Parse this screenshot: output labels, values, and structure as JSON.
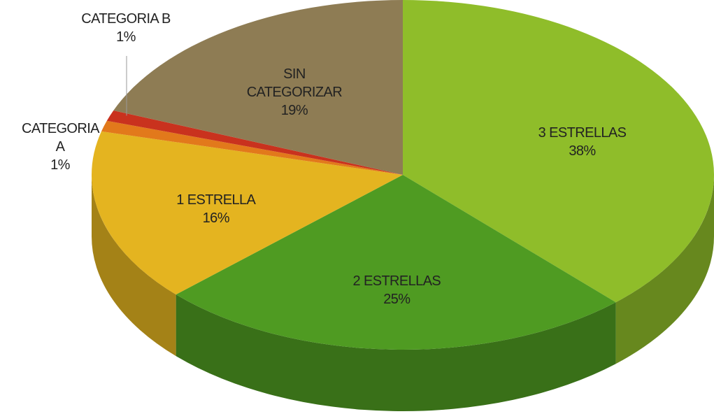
{
  "chart_data": {
    "type": "pie3d",
    "categories": [
      "3 ESTRELLAS",
      "2 ESTRELLAS",
      "1 ESTRELLA",
      "CATEGORIA A",
      "CATEGORIA B",
      "SIN CATEGORIZAR"
    ],
    "values": [
      38,
      25,
      16,
      1,
      1,
      19
    ],
    "value_labels": [
      "38%",
      "25%",
      "16%",
      "1%",
      "1%",
      "19%"
    ],
    "colors": [
      "#8fbd2a",
      "#4f9b22",
      "#e4b420",
      "#e2791b",
      "#c9321e",
      "#8e7c54"
    ]
  }
}
